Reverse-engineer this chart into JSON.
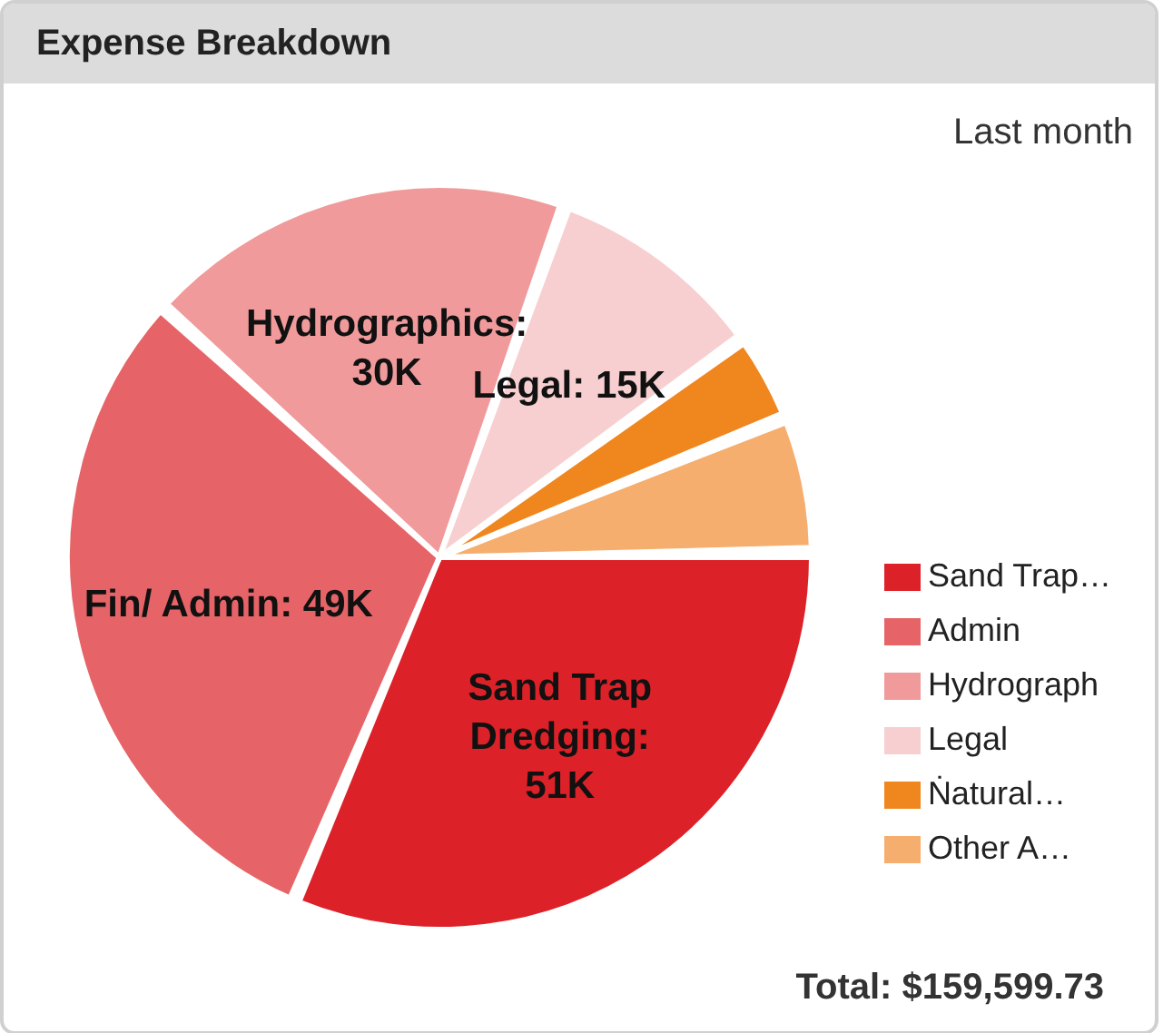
{
  "chart_data": {
    "type": "pie",
    "title": "Expense Breakdown",
    "subtitle": "Last month",
    "categories": [
      "Sand Trap…",
      "Admin",
      "Hydrograph",
      "Legal",
      "Ṅatural…",
      "Other A…"
    ],
    "values": [
      51,
      49,
      30,
      15,
      5.6,
      9.0
    ],
    "colors": [
      "#dc2228",
      "#e66467",
      "#f09a9b",
      "#f7cfd0",
      "#f0861e",
      "#f5ae6e"
    ],
    "value_labels": [
      "Sand Trap Dredging: 51K",
      "Fin/ Admin: 49K",
      "Hydrographics: 30K",
      "Legal: 15K",
      null,
      null
    ],
    "legend": "right",
    "annotations": [
      "Total: $159,599.73"
    ]
  }
}
